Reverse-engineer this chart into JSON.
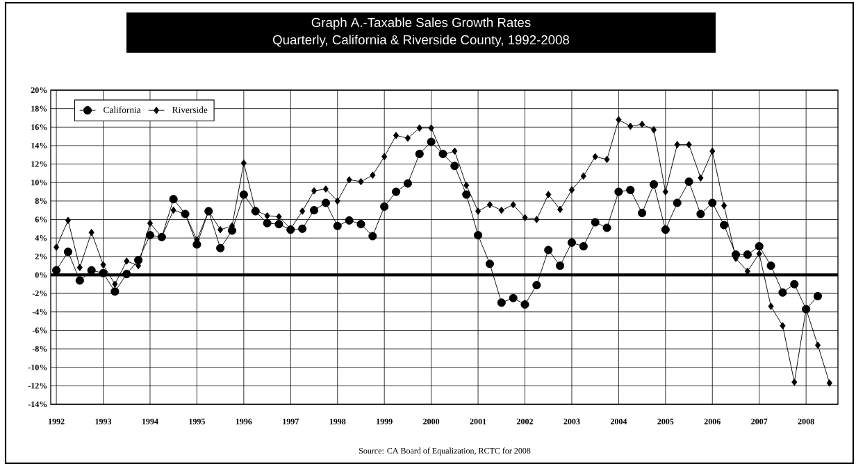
{
  "chart_data": {
    "type": "line",
    "title": "Graph A.-Taxable Sales Growth Rates",
    "subtitle": "Quarterly, California & Riverside County, 1992-2008",
    "annotations": [
      "Source:  CA Board of Equalization, RCTC  for 2008"
    ],
    "series": [
      {
        "name": "California",
        "color": "#000000",
        "marker": "circle",
        "x": [
          1992,
          1992.25,
          1992.5,
          1992.75,
          1993,
          1993.25,
          1993.5,
          1993.75,
          1994,
          1994.25,
          1994.5,
          1994.75,
          1995,
          1995.25,
          1995.5,
          1995.75,
          1996,
          1996.25,
          1996.5,
          1996.75,
          1997,
          1997.25,
          1997.5,
          1997.75,
          1998,
          1998.25,
          1998.5,
          1998.75,
          1999,
          1999.25,
          1999.5,
          1999.75,
          2000,
          2000.25,
          2000.5,
          2000.75,
          2001,
          2001.25,
          2001.5,
          2001.75,
          2002,
          2002.25,
          2002.5,
          2002.75,
          2003,
          2003.25,
          2003.5,
          2003.75,
          2004,
          2004.25,
          2004.5,
          2004.75,
          2005,
          2005.25,
          2005.5,
          2005.75,
          2006,
          2006.25,
          2006.5,
          2006.75,
          2007,
          2007.25,
          2007.5,
          2007.75,
          2008,
          2008.25
        ],
        "values": [
          0.5,
          2.5,
          -0.6,
          0.5,
          0.2,
          -1.8,
          0.1,
          1.6,
          4.3,
          4.1,
          8.2,
          6.6,
          3.3,
          6.9,
          2.9,
          4.8,
          8.7,
          6.9,
          5.6,
          5.5,
          4.9,
          5.0,
          7.0,
          7.8,
          5.3,
          5.9,
          5.5,
          4.2,
          7.4,
          9.0,
          9.9,
          13.1,
          14.4,
          13.1,
          11.8,
          8.7,
          4.3,
          1.2,
          -3.0,
          -2.5,
          -3.2,
          -1.1,
          2.7,
          1.0,
          3.5,
          3.1,
          5.7,
          5.1,
          9.0,
          9.2,
          6.7,
          9.8,
          4.9,
          7.8,
          10.1,
          6.6,
          7.8,
          5.4,
          2.2,
          2.2,
          3.1,
          1.0,
          -1.9,
          -1.0,
          -3.7,
          -2.3
        ]
      },
      {
        "name": "Riverside",
        "color": "#000000",
        "marker": "diamond",
        "x": [
          1992,
          1992.25,
          1992.5,
          1992.75,
          1993,
          1993.25,
          1993.5,
          1993.75,
          1994,
          1994.25,
          1994.5,
          1994.75,
          1995,
          1995.25,
          1995.5,
          1995.75,
          1996,
          1996.25,
          1996.5,
          1996.75,
          1997,
          1997.25,
          1997.5,
          1997.75,
          1998,
          1998.25,
          1998.5,
          1998.75,
          1999,
          1999.25,
          1999.5,
          1999.75,
          2000,
          2000.25,
          2000.5,
          2000.75,
          2001,
          2001.25,
          2001.5,
          2001.75,
          2002,
          2002.25,
          2002.5,
          2002.75,
          2003,
          2003.25,
          2003.5,
          2003.75,
          2004,
          2004.25,
          2004.5,
          2004.75,
          2005,
          2005.25,
          2005.5,
          2005.75,
          2006,
          2006.25,
          2006.5,
          2006.75,
          2007,
          2007.25,
          2007.5,
          2007.75,
          2008,
          2008.25,
          2008.5
        ],
        "values": [
          3.0,
          5.9,
          0.8,
          4.6,
          1.1,
          -1.0,
          1.5,
          1.0,
          5.6,
          4.1,
          7.0,
          6.6,
          3.8,
          6.9,
          4.9,
          5.3,
          12.1,
          7.0,
          6.4,
          6.3,
          5.0,
          6.9,
          9.1,
          9.3,
          8.0,
          10.3,
          10.1,
          10.8,
          12.8,
          15.1,
          14.8,
          15.9,
          15.9,
          13.0,
          13.4,
          9.7,
          6.9,
          7.6,
          7.0,
          7.6,
          6.2,
          6.0,
          8.7,
          7.1,
          9.2,
          10.7,
          12.8,
          12.5,
          16.8,
          16.1,
          16.3,
          15.7,
          9.0,
          14.1,
          14.1,
          10.5,
          13.4,
          7.5,
          1.8,
          0.4,
          2.3,
          -3.4,
          -5.5,
          -11.6,
          -3.7,
          -7.6,
          -11.7
        ]
      }
    ],
    "xlim": [
      1991.88,
      2008.68
    ],
    "xticks": [
      1992,
      1993,
      1994,
      1995,
      1996,
      1997,
      1998,
      1999,
      2000,
      2001,
      2002,
      2003,
      2004,
      2005,
      2006,
      2007,
      2008
    ],
    "ylim": [
      -14,
      20
    ],
    "yticks": [
      {
        "value": -14,
        "label": "-14%"
      },
      {
        "value": -12,
        "label": "-12%"
      },
      {
        "value": -10,
        "label": "-10%"
      },
      {
        "value": -8,
        "label": "-8%"
      },
      {
        "value": -6,
        "label": "-6%"
      },
      {
        "value": -4,
        "label": "-4%"
      },
      {
        "value": -2,
        "label": "-2%"
      },
      {
        "value": 0,
        "label": "0%"
      },
      {
        "value": 2,
        "label": "2%"
      },
      {
        "value": 4,
        "label": "4%"
      },
      {
        "value": 6,
        "label": "6%"
      },
      {
        "value": 8,
        "label": "8%"
      },
      {
        "value": 10,
        "label": "10%"
      },
      {
        "value": 12,
        "label": "12%"
      },
      {
        "value": 14,
        "label": "14%"
      },
      {
        "value": 16,
        "label": "16%"
      },
      {
        "value": 18,
        "label": "18%"
      },
      {
        "value": 20,
        "label": "20%"
      }
    ],
    "ref_lines": [
      {
        "axis": "y",
        "value": 0,
        "color": "#000000"
      }
    ],
    "grid": true,
    "legend": "top left",
    "line_style": "solid"
  }
}
